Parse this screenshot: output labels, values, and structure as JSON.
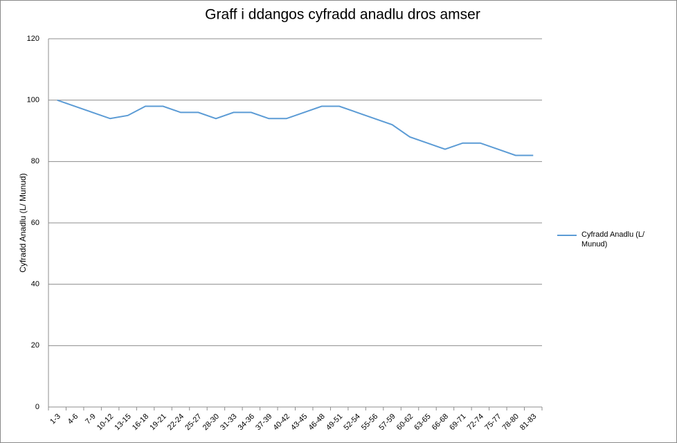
{
  "chart_data": {
    "type": "line",
    "title": "Graff i ddangos cyfradd anadlu dros amser",
    "y_label": "Cyfradd Anadlu (L/ Munud)",
    "categories": [
      "1-3",
      "4-6",
      "7-9",
      "10-12",
      "13-15",
      "16-18",
      "19-21",
      "22-24",
      "25-27",
      "28-30",
      "31-33",
      "34-36",
      "37-39",
      "40-42",
      "43-45",
      "46-48",
      "49-51",
      "52-54",
      "55-56",
      "57-59",
      "60-62",
      "63-65",
      "66-68",
      "69-71",
      "72-74",
      "75-77",
      "78-80",
      "81-83"
    ],
    "series": [
      {
        "name": "Cyfradd Anadlu (L/ Munud)",
        "color": "#5b9bd5",
        "values": [
          100,
          98,
          96,
          94,
          95,
          98,
          98,
          96,
          96,
          94,
          96,
          96,
          94,
          94,
          96,
          98,
          98,
          96,
          94,
          92,
          88,
          86,
          84,
          86,
          86,
          84,
          82,
          82
        ]
      }
    ],
    "ylim": [
      0,
      120
    ],
    "yticks": [
      0,
      20,
      40,
      60,
      80,
      100,
      120
    ],
    "grid": true,
    "legend": "right"
  }
}
